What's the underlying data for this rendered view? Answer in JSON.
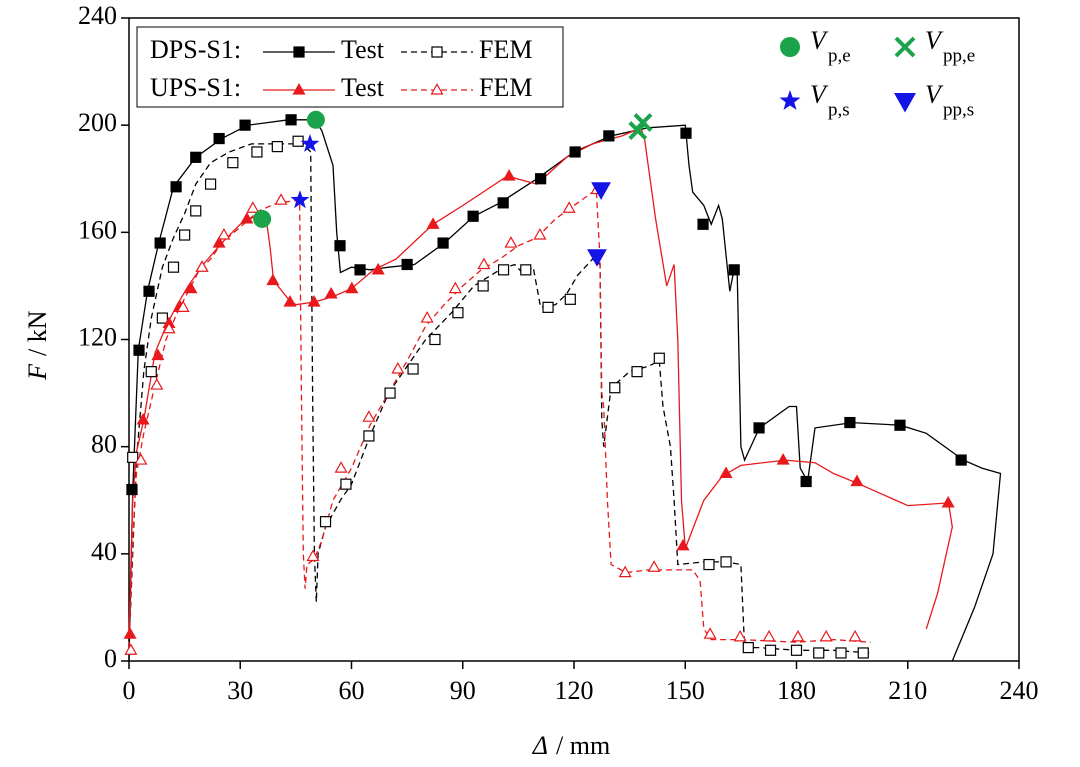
{
  "chart_data": {
    "type": "line",
    "xlabel": {
      "symbol": "Δ",
      "unit": "/ mm"
    },
    "ylabel": {
      "symbol": "F",
      "unit": "/ kN"
    },
    "xlim": [
      0,
      240
    ],
    "ylim": [
      0,
      240
    ],
    "xticks": [
      0,
      30,
      60,
      90,
      120,
      150,
      180,
      210,
      240
    ],
    "yticks": [
      0,
      40,
      80,
      120,
      160,
      200,
      240
    ],
    "groups": [
      {
        "name": "DPS-S1:",
        "series": [
          {
            "name": "Test",
            "color": "#000000",
            "dashed": false,
            "marker": "square",
            "filled": true,
            "x": [
              0,
              1,
              2.5,
              5,
              8,
              12,
              18,
              25,
              32,
              43,
              50,
              52,
              55,
              56,
              57,
              60,
              65,
              70,
              77,
              85,
              93,
              100,
              110,
              120,
              130,
              140,
              150,
              151,
              152,
              155,
              157,
              159,
              160,
              162,
              163,
              164,
              165,
              166,
              170,
              178,
              180,
              181,
              183,
              185,
              195,
              208,
              215,
              225,
              230,
              235,
              233,
              228,
              222
            ],
            "values": [
              0,
              63,
              116,
              138,
              156,
              177,
              188,
              195,
              200,
              202,
              202,
              198,
              185,
              160,
              145,
              147,
              146,
              147,
              148,
              156,
              166,
              171,
              180,
              190,
              196,
              199,
              200,
              185,
              175,
              170,
              163,
              170,
              165,
              138,
              145,
              145,
              80,
              75,
              87,
              95,
              95,
              72,
              67,
              87,
              89,
              88,
              85,
              75,
              72,
              70,
              40,
              20,
              0
            ],
            "marker_x": [
              0.8,
              2.7,
              5.4,
              8.4,
              12.7,
              18,
              24.3,
              31.3,
              43.7,
              56.9,
              62.3,
              75,
              84.7,
              92.8,
              100.9,
              111,
              120.3,
              129.4,
              150.2,
              154.8,
              163.2,
              169.9,
              182.6,
              194.4,
              207.9,
              224.4
            ],
            "marker_values": [
              64,
              116,
              138,
              156,
              177,
              188,
              195,
              200,
              202,
              155,
              146,
              148,
              156,
              166,
              171,
              180,
              190,
              196,
              197,
              163,
              146,
              87,
              67,
              89,
              88,
              75
            ]
          },
          {
            "name": "FEM",
            "color": "#000000",
            "dashed": true,
            "marker": "square",
            "filled": false,
            "x": [
              0,
              1,
              2,
              4,
              6,
              9,
              12,
              15,
              18,
              22,
              27,
              33,
              40,
              47,
              49,
              49.5,
              50,
              50.5,
              51,
              53,
              57,
              60,
              65,
              70,
              75,
              80,
              87,
              93,
              100,
              104,
              106,
              109,
              111,
              115,
              118,
              121,
              125,
              127,
              127.5,
              128,
              130,
              135,
              140,
              143,
              144,
              146,
              147,
              148,
              155,
              161,
              165,
              166,
              170,
              180,
              190,
              200
            ],
            "values": [
              5,
              40,
              75,
              108,
              128,
              147,
              158,
              167,
              178,
              186,
              190,
              193,
              193,
              193,
              190,
              100,
              40,
              22,
              40,
              50,
              60,
              66,
              84,
              100,
              110,
              120,
              130,
              140,
              146,
              148,
              145,
              147,
              132,
              133,
              137,
              144,
              150,
              148,
              90,
              80,
              102,
              108,
              110,
              112,
              95,
              80,
              60,
              36,
              37,
              37,
              36,
              5,
              5,
              4,
              4,
              3
            ],
            "marker_x": [
              1,
              6,
              9,
              12,
              15,
              18,
              22,
              28,
              34.5,
              40,
              45.6,
              53,
              58.5,
              64.7,
              70.4,
              76.6,
              82.5,
              88.7,
              95.5,
              101,
              107,
              113,
              119,
              131,
              137,
              143,
              156.4,
              161,
              167,
              173,
              180,
              186,
              192,
              198
            ],
            "marker_values": [
              76,
              108,
              128,
              147,
              159,
              168,
              178,
              186,
              190,
              192,
              194,
              52,
              66,
              84,
              100,
              109,
              120,
              130,
              140,
              146,
              146,
              132,
              135,
              102,
              108,
              113,
              36,
              37,
              5,
              4,
              4,
              3,
              3,
              3
            ]
          }
        ]
      },
      {
        "name": "UPS-S1:",
        "series": [
          {
            "name": "Test",
            "color": "#e8191c",
            "dashed": false,
            "marker": "triangle",
            "filled": true,
            "x": [
              0,
              1,
              2,
              4,
              7,
              10,
              13,
              16,
              20,
              25,
              30,
              34,
              37,
              38,
              39,
              43,
              45,
              50,
              55,
              60,
              66,
              72,
              82,
              90,
              102,
              110,
              118,
              125,
              133,
              138,
              139,
              142,
              145,
              147,
              148,
              149,
              150,
              155,
              160,
              165,
              177,
              185,
              190,
              197,
              210,
              221,
              222,
              218,
              215
            ],
            "values": [
              10,
              60,
              78,
              90,
              115,
              125,
              133,
              140,
              148,
              156,
              163,
              166,
              165,
              155,
              142,
              135,
              133,
              134,
              136,
              139,
              146,
              150,
              163,
              170,
              181,
              178,
              188,
              193,
              196,
              199,
              195,
              165,
              140,
              148,
              120,
              60,
              42,
              60,
              69,
              73,
              75,
              74,
              70,
              66,
              58,
              59,
              50,
              25,
              12
            ],
            "marker_x": [
              0.3,
              3.8,
              7.8,
              10.8,
              13.8,
              16.7,
              19.7,
              24.3,
              31.8,
              38.8,
              43.4,
              49.9,
              54.5,
              60.1,
              67.2,
              82,
              102.5,
              149.4,
              161,
              176.4,
              196.3,
              220.9
            ],
            "marker_values": [
              10,
              90,
              114,
              126,
              132,
              139,
              147,
              156,
              165,
              142,
              134,
              134,
              137,
              139,
              146,
              163,
              181,
              43,
              70,
              75,
              67,
              59
            ]
          },
          {
            "name": "FEM",
            "color": "#e8191c",
            "dashed": true,
            "marker": "triangle",
            "filled": false,
            "x": [
              0,
              1,
              2,
              4,
              7,
              10,
              13,
              16,
              19,
              22,
              25,
              30,
              35,
              40,
              46,
              46.5,
              47,
              47.5,
              48,
              50,
              52,
              55,
              60,
              65,
              70,
              75,
              80,
              85,
              90,
              95,
              100,
              105,
              110,
              115,
              120,
              126,
              127,
              127.5,
              128,
              129,
              130,
              134,
              140,
              148,
              152,
              154,
              155,
              157,
              165,
              180,
              190,
              200
            ],
            "values": [
              5,
              45,
              70,
              85,
              103,
              120,
              130,
              138,
              146,
              150,
              156,
              162,
              168,
              171,
              172,
              100,
              40,
              27,
              36,
              38,
              45,
              60,
              72,
              88,
              100,
              112,
              125,
              133,
              140,
              146,
              150,
              155,
              158,
              165,
              170,
              176,
              150,
              100,
              95,
              60,
              36,
              33,
              34,
              34,
              34,
              30,
              12,
              8,
              8,
              7,
              8,
              7
            ],
            "marker_x": [
              0.5,
              3.2,
              7.5,
              10.8,
              14.6,
              19.7,
              25.6,
              33.4,
              41,
              49.6,
              57.2,
              64.7,
              72.5,
              80.4,
              88,
              95.7,
              103,
              110.8,
              118.7,
              126.2,
              133.8,
              141.6,
              156.7,
              164.8,
              172.6,
              180.4,
              188,
              195.8
            ],
            "marker_values": [
              4,
              75,
              103,
              124,
              132,
              147,
              159,
              169,
              172,
              39,
              72,
              91,
              109,
              128,
              139,
              148,
              156,
              159,
              169,
              176,
              33,
              35,
              10,
              9,
              9,
              9,
              9,
              9
            ]
          }
        ]
      }
    ],
    "points": [
      {
        "name": "V",
        "sub": "p,e",
        "color": "#1aa34a",
        "marker": "circle",
        "x": [
          35.9,
          50.4
        ],
        "values": [
          165,
          202
        ]
      },
      {
        "name": "V",
        "sub": "pp,e",
        "color": "#1aa34a",
        "marker": "cross",
        "x": [
          137.2,
          138.6
        ],
        "values": [
          198,
          201
        ]
      },
      {
        "name": "V",
        "sub": "p,s",
        "color": "#1414e6",
        "marker": "star",
        "x": [
          46.1,
          48.8
        ],
        "values": [
          172,
          193
        ]
      },
      {
        "name": "V",
        "sub": "pp,s",
        "color": "#1414e6",
        "marker": "down-triangle",
        "x": [
          127.3,
          126.2
        ],
        "values": [
          176,
          151
        ]
      }
    ]
  }
}
